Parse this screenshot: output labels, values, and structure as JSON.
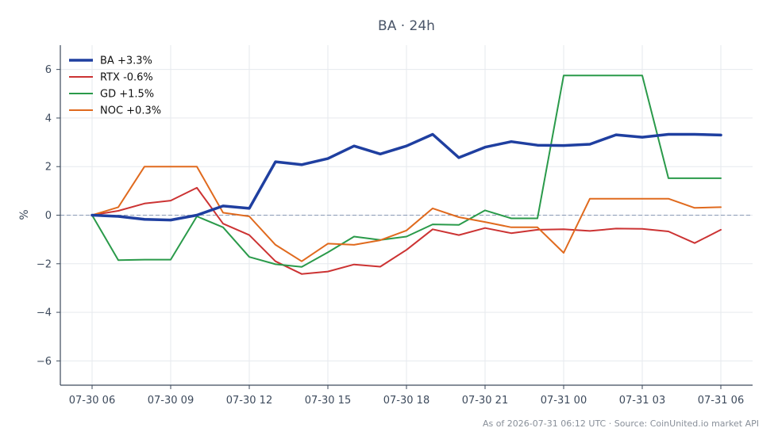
{
  "chart_data": {
    "type": "line",
    "title": "BA · 24h",
    "ylabel": "%",
    "xlabel": "",
    "ylim": [
      -7,
      7
    ],
    "yticks": [
      -6,
      -4,
      -2,
      0,
      2,
      4,
      6
    ],
    "ytick_labels": [
      "−6",
      "−4",
      "−2",
      "0",
      "2",
      "4",
      "6"
    ],
    "xticks": [
      "07-30 06",
      "07-30 09",
      "07-30 12",
      "07-30 15",
      "07-30 18",
      "07-30 21",
      "07-31 00",
      "07-31 03",
      "07-31 06"
    ],
    "x": [
      "07-30 06",
      "07-30 07",
      "07-30 08",
      "07-30 09",
      "07-30 10",
      "07-30 11",
      "07-30 12",
      "07-30 13",
      "07-30 14",
      "07-30 15",
      "07-30 16",
      "07-30 17",
      "07-30 18",
      "07-30 19",
      "07-30 20",
      "07-30 21",
      "07-30 22",
      "07-30 23",
      "07-31 00",
      "07-31 01",
      "07-31 02",
      "07-31 03",
      "07-31 04",
      "07-31 05",
      "07-31 06"
    ],
    "grid": true,
    "zero_line": true,
    "legend_position": "top-left",
    "series": [
      {
        "name": "BA +3.3%",
        "color": "#1f3fa0",
        "width": 3.5,
        "values": [
          0.0,
          -0.05,
          -0.17,
          -0.2,
          0.0,
          0.38,
          0.28,
          2.2,
          2.08,
          2.33,
          2.85,
          2.52,
          2.85,
          3.33,
          2.37,
          2.8,
          3.03,
          2.88,
          2.87,
          2.92,
          3.31,
          3.21,
          3.33,
          3.33,
          3.3
        ]
      },
      {
        "name": "RTX -0.6%",
        "color": "#cc3333",
        "width": 2,
        "values": [
          0.0,
          0.18,
          0.48,
          0.6,
          1.13,
          -0.35,
          -0.82,
          -1.9,
          -2.42,
          -2.32,
          -2.03,
          -2.12,
          -1.43,
          -0.58,
          -0.82,
          -0.53,
          -0.74,
          -0.6,
          -0.58,
          -0.65,
          -0.55,
          -0.56,
          -0.67,
          -1.15,
          -0.6
        ]
      },
      {
        "name": "GD +1.5%",
        "color": "#2a9a4a",
        "width": 2,
        "values": [
          0.0,
          -1.85,
          -1.83,
          -1.83,
          -0.05,
          -0.5,
          -1.72,
          -2.02,
          -2.13,
          -1.53,
          -0.88,
          -1.02,
          -0.88,
          -0.38,
          -0.4,
          0.2,
          -0.13,
          -0.13,
          5.75,
          5.75,
          5.75,
          5.75,
          1.52,
          1.52,
          1.52
        ]
      },
      {
        "name": "NOC +0.3%",
        "color": "#e06a1e",
        "width": 2,
        "values": [
          0.0,
          0.33,
          2.0,
          2.0,
          2.0,
          0.1,
          -0.05,
          -1.22,
          -1.9,
          -1.17,
          -1.22,
          -1.03,
          -0.63,
          0.28,
          -0.08,
          -0.28,
          -0.5,
          -0.5,
          -1.55,
          0.68,
          0.68,
          0.68,
          0.68,
          0.3,
          0.33
        ]
      }
    ]
  },
  "footer": "As of 2026-07-31 06:12 UTC · Source: CoinUnited.io market API"
}
